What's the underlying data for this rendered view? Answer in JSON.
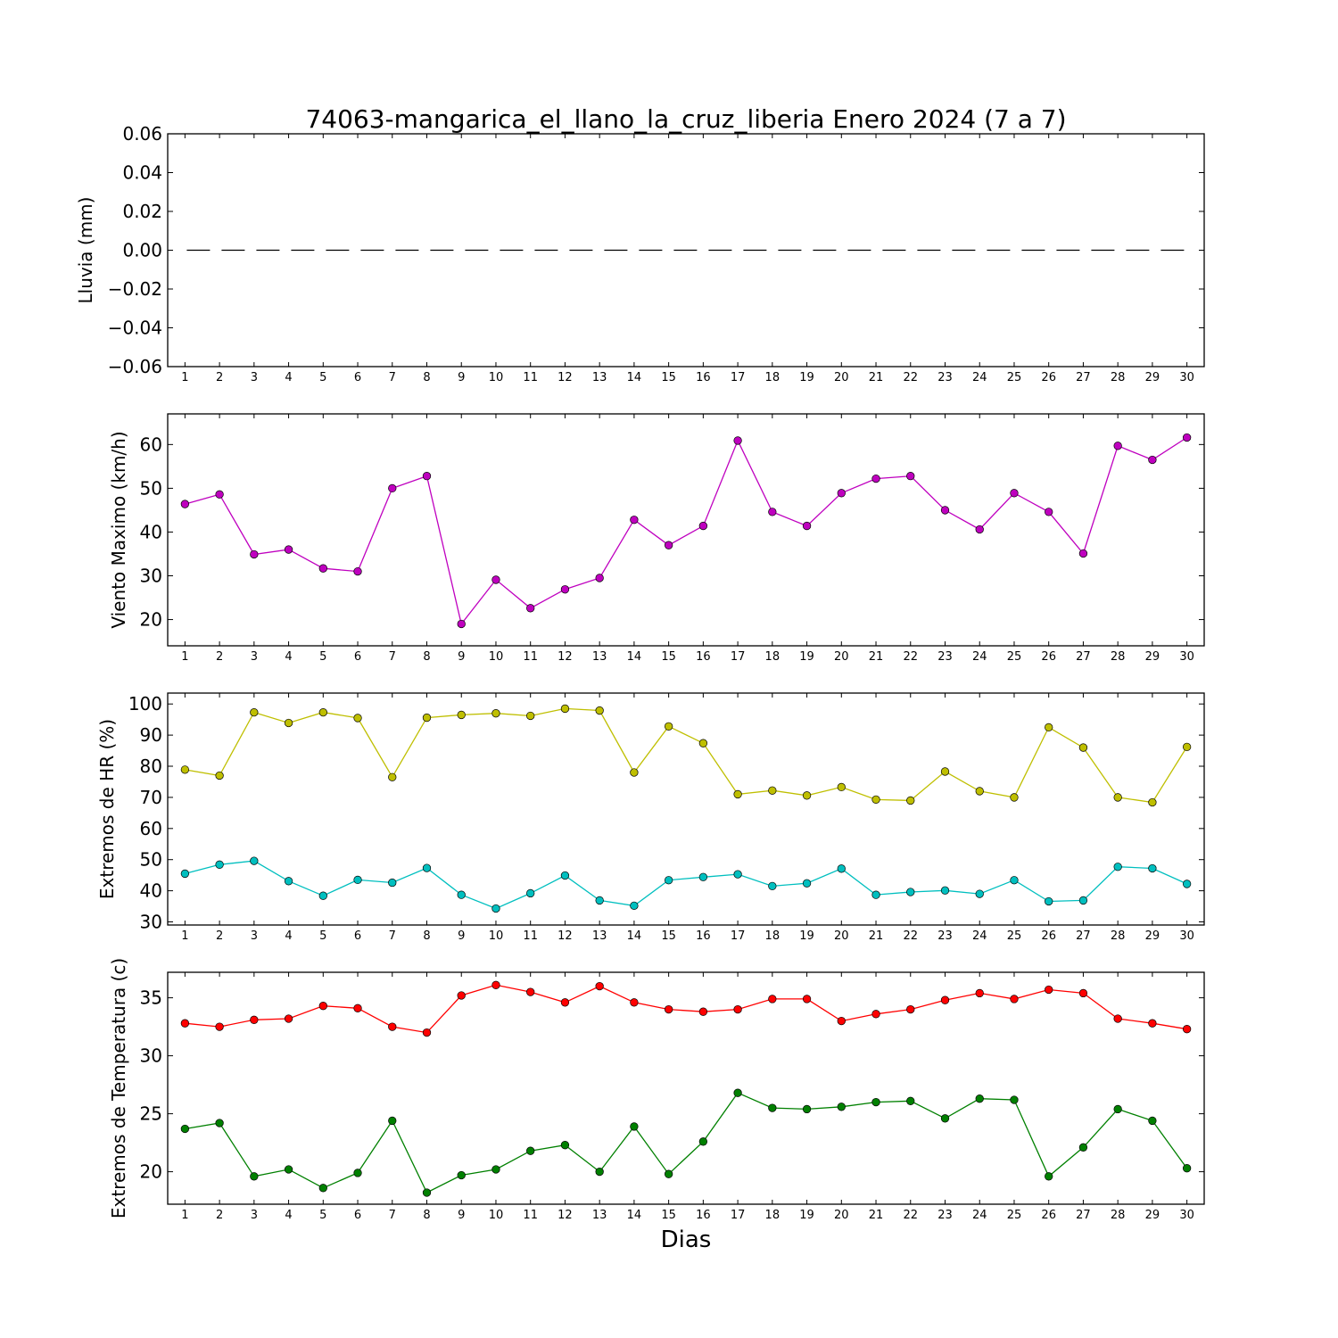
{
  "chart_data": {
    "title": "74063-mangarica_el_llano_la_cruz_liberia Enero 2024  (7 a 7)",
    "xlabel": "Dias",
    "x": [
      1,
      2,
      3,
      4,
      5,
      6,
      7,
      8,
      9,
      10,
      11,
      12,
      13,
      14,
      15,
      16,
      17,
      18,
      19,
      20,
      21,
      22,
      23,
      24,
      25,
      26,
      27,
      28,
      29,
      30
    ],
    "xlim": [
      0.5,
      30.5
    ],
    "panels": [
      {
        "type": "line",
        "ylabel": "Lluvia (mm)",
        "ylim": [
          -0.06,
          0.06
        ],
        "yticks": [
          -0.06,
          -0.04,
          -0.02,
          0.0,
          0.02,
          0.04,
          0.06
        ],
        "ytick_labels": [
          "−0.06",
          "−0.04",
          "−0.02",
          "0.00",
          "0.02",
          "0.04",
          "0.06"
        ],
        "series": [
          {
            "color": "#000000",
            "style": "dashed",
            "marker": "none",
            "values": [
              0,
              0,
              0,
              0,
              0,
              0,
              0,
              0,
              0,
              0,
              0,
              0,
              0,
              0,
              0,
              0,
              0,
              0,
              0,
              0,
              0,
              0,
              0,
              0,
              0,
              0,
              0,
              0,
              0,
              0
            ]
          }
        ]
      },
      {
        "type": "line",
        "ylabel": "Viento Maximo (km/h)",
        "ylim": [
          14,
          67
        ],
        "yticks": [
          20,
          30,
          40,
          50,
          60
        ],
        "ytick_labels": [
          "20",
          "30",
          "40",
          "50",
          "60"
        ],
        "series": [
          {
            "color": "#bf00bf",
            "style": "solid",
            "marker": "circle",
            "values": [
              46.4,
              48.6,
              34.9,
              36.0,
              31.7,
              31.0,
              50.0,
              52.8,
              19.0,
              29.1,
              22.6,
              26.9,
              29.5,
              42.8,
              37.0,
              41.4,
              60.9,
              44.6,
              41.4,
              48.9,
              52.2,
              52.8,
              45.0,
              40.6,
              48.9,
              44.6,
              35.1,
              59.7,
              56.5,
              61.6
            ]
          }
        ]
      },
      {
        "type": "line",
        "ylabel": "Extremos de HR (%)",
        "ylim": [
          29,
          103.5
        ],
        "yticks": [
          30,
          40,
          50,
          60,
          70,
          80,
          90,
          100
        ],
        "ytick_labels": [
          "30",
          "40",
          "50",
          "60",
          "70",
          "80",
          "90",
          "100"
        ],
        "series": [
          {
            "color": "#bfbf00",
            "style": "solid",
            "marker": "circle",
            "values": [
              78.9,
              77.0,
              97.3,
              93.9,
              97.3,
              95.5,
              76.5,
              95.6,
              96.5,
              97.0,
              96.2,
              98.5,
              97.9,
              78.0,
              92.8,
              87.4,
              71.0,
              72.2,
              70.6,
              73.3,
              69.3,
              69.0,
              78.3,
              72.0,
              70.0,
              92.5,
              86.0,
              70.0,
              68.4,
              86.2
            ]
          },
          {
            "color": "#00bfbf",
            "style": "solid",
            "marker": "circle",
            "values": [
              45.5,
              48.4,
              49.6,
              43.1,
              38.4,
              43.5,
              42.6,
              47.3,
              38.7,
              34.3,
              39.2,
              44.9,
              36.9,
              35.2,
              43.4,
              44.4,
              45.3,
              41.5,
              42.4,
              47.1,
              38.7,
              39.6,
              40.1,
              39.0,
              43.4,
              36.6,
              36.9,
              47.7,
              47.2,
              42.2
            ]
          }
        ]
      },
      {
        "type": "line",
        "ylabel": "Extremos de Temperatura (c)",
        "ylim": [
          17.2,
          37.2
        ],
        "yticks": [
          20,
          25,
          30,
          35
        ],
        "ytick_labels": [
          "20",
          "25",
          "30",
          "35"
        ],
        "series": [
          {
            "color": "#ff0000",
            "style": "solid",
            "marker": "circle",
            "values": [
              32.8,
              32.5,
              33.1,
              33.2,
              34.3,
              34.1,
              32.5,
              32.0,
              35.2,
              36.1,
              35.5,
              34.6,
              36.0,
              34.6,
              34.0,
              33.8,
              34.0,
              34.9,
              34.9,
              33.0,
              33.6,
              34.0,
              34.8,
              35.4,
              34.9,
              35.7,
              35.4,
              33.2,
              32.8,
              32.3
            ]
          },
          {
            "color": "#008000",
            "style": "solid",
            "marker": "circle",
            "values": [
              23.7,
              24.2,
              19.6,
              20.2,
              18.6,
              19.9,
              24.4,
              18.2,
              19.7,
              20.2,
              21.8,
              22.3,
              20.0,
              23.9,
              19.8,
              22.6,
              26.8,
              25.5,
              25.4,
              25.6,
              26.0,
              26.1,
              24.6,
              26.3,
              26.2,
              19.6,
              22.1,
              25.4,
              24.4,
              20.3
            ]
          }
        ]
      }
    ]
  }
}
